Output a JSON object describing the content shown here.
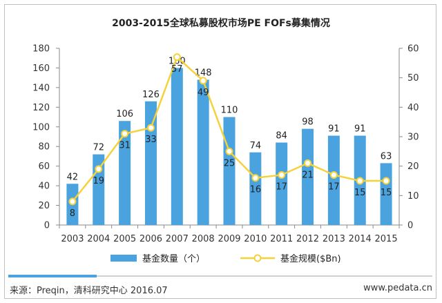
{
  "chart_data": {
    "type": "bar+line",
    "title": "2003-2015全球私募股权市场PE FOFs募集情况",
    "categories": [
      "2003",
      "2004",
      "2005",
      "2006",
      "2007",
      "2008",
      "2009",
      "2010",
      "2011",
      "2012",
      "2013",
      "2014",
      "2015"
    ],
    "series": [
      {
        "name": "基金数量（个）",
        "type": "bar",
        "axis": "left",
        "values": [
          42,
          72,
          106,
          126,
          160,
          148,
          110,
          74,
          84,
          98,
          91,
          91,
          63
        ]
      },
      {
        "name": "基金规模($Bn)",
        "type": "line",
        "axis": "right",
        "values": [
          8,
          19,
          31,
          33,
          57,
          49,
          25,
          16,
          17,
          21,
          17,
          15,
          15
        ]
      }
    ],
    "left_axis": {
      "min": 0,
      "max": 180,
      "step": 20,
      "ticks": [
        "0",
        "20",
        "40",
        "60",
        "80",
        "100",
        "120",
        "140",
        "160",
        "180"
      ]
    },
    "right_axis": {
      "min": 0,
      "max": 60,
      "step": 10,
      "ticks": [
        "0",
        "10",
        "20",
        "30",
        "40",
        "50",
        "60"
      ]
    },
    "grid": false,
    "legend": "bottom",
    "colors": {
      "bar": "#4aa3df",
      "line": "#f5d23c",
      "marker_fill": "#ffffff"
    }
  },
  "footer": {
    "source": "来源：Preqin，清科研究中心 2016.07",
    "site": "www.pedata.cn"
  }
}
